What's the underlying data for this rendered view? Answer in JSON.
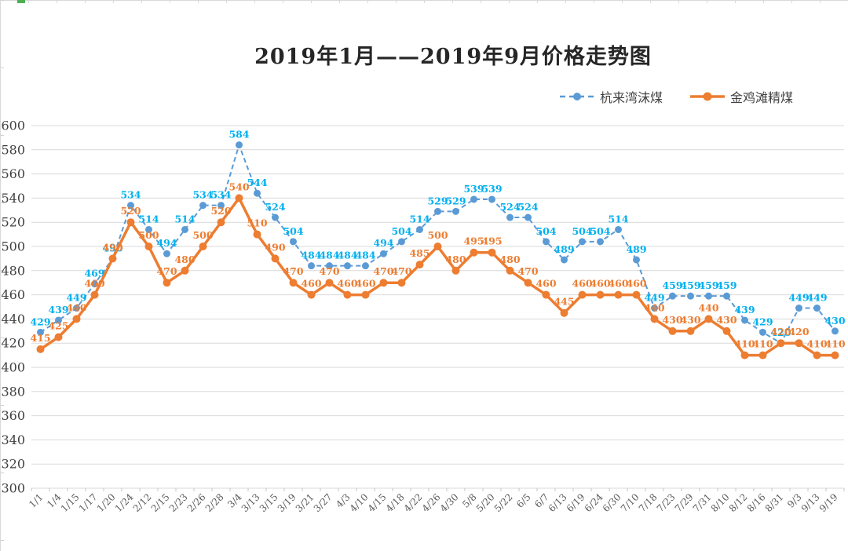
{
  "frame": {
    "edge_color": "#d9d9d9",
    "edge_accent_color": "#4caf50"
  },
  "chart_data": {
    "type": "line",
    "title": "2019年1月——2019年9月价格走势图",
    "categories": [
      "1/1",
      "1/4",
      "1/15",
      "1/17",
      "1/20",
      "1/24",
      "2/12",
      "2/15",
      "2/23",
      "2/26",
      "2/28",
      "3/4",
      "3/13",
      "3/15",
      "3/19",
      "3/21",
      "3/27",
      "4/3",
      "4/10",
      "4/15",
      "4/18",
      "4/22",
      "4/26",
      "4/30",
      "5/8",
      "5/20",
      "5/22",
      "6/5",
      "6/7",
      "6/13",
      "6/19",
      "6/24",
      "6/30",
      "7/10",
      "7/18",
      "7/23",
      "7/29",
      "7/31",
      "8/10",
      "8/12",
      "8/16",
      "8/31",
      "9/3",
      "9/13",
      "9/19"
    ],
    "series": [
      {
        "name": "杭来湾沫煤",
        "color": "#5B9BD5",
        "label_color": "#00B0F0",
        "line_style": "dashed",
        "values": [
          429,
          439,
          449,
          469,
          490,
          534,
          514,
          494,
          514,
          534,
          534,
          584,
          544,
          524,
          504,
          484,
          484,
          484,
          484,
          494,
          504,
          514,
          529,
          529,
          539,
          539,
          524,
          524,
          504,
          489,
          504,
          504,
          514,
          489,
          449,
          459,
          459,
          459,
          459,
          439,
          429,
          420,
          449,
          449,
          430
        ]
      },
      {
        "name": "金鸡滩精煤",
        "color": "#ED7D31",
        "label_color": "#ED7D31",
        "line_style": "solid",
        "values": [
          415,
          425,
          440,
          460,
          490,
          520,
          500,
          470,
          480,
          500,
          520,
          540,
          510,
          490,
          470,
          460,
          470,
          460,
          460,
          470,
          470,
          485,
          500,
          480,
          495,
          495,
          480,
          470,
          460,
          445,
          460,
          460,
          460,
          460,
          440,
          430,
          430,
          440,
          430,
          410,
          410,
          420,
          420,
          410,
          410
        ]
      }
    ],
    "ylim": [
      300,
      600
    ],
    "y_tick_step": 20,
    "y_ticks": [
      300,
      320,
      340,
      360,
      380,
      400,
      420,
      440,
      460,
      480,
      500,
      520,
      540,
      560,
      580,
      600
    ],
    "grid": true,
    "data_labels": true,
    "legend_position": "top-right",
    "gridline_color": "#d9d9d9",
    "axis_label_color": "#595959",
    "y_label_color": "#404040"
  }
}
